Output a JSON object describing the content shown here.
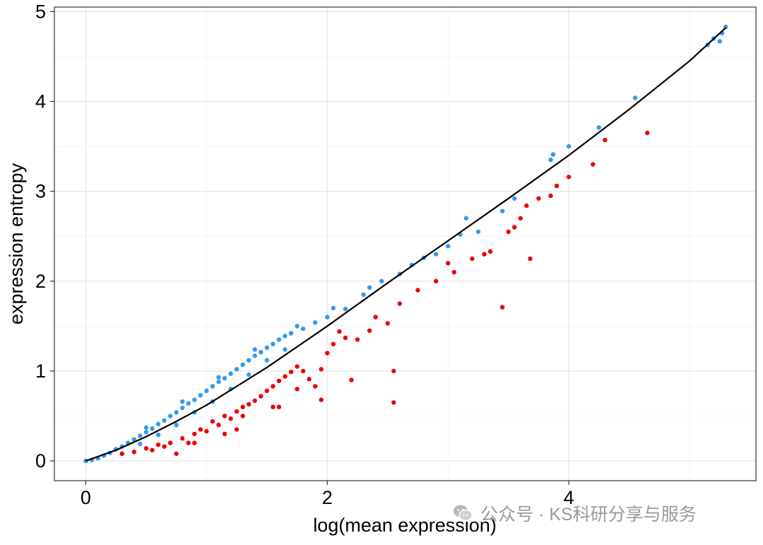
{
  "chart_data": {
    "type": "scatter",
    "title": "",
    "xlabel": "log(mean expression)",
    "ylabel": "expression entropy",
    "xlim": [
      -0.26,
      5.55
    ],
    "ylim": [
      -0.22,
      5.05
    ],
    "x_ticks": [
      0,
      2,
      4
    ],
    "y_ticks": [
      0,
      1,
      2,
      3,
      4,
      5
    ],
    "grid": true,
    "legend": "none",
    "colors": {
      "series_a": "#3399ee",
      "series_b": "#ee0000",
      "fit": "#000000"
    },
    "fit_line": {
      "x": [
        0,
        0.25,
        0.5,
        0.75,
        1.0,
        1.25,
        1.5,
        1.75,
        2.0,
        2.5,
        3.0,
        3.5,
        4.0,
        4.5,
        5.0,
        5.3
      ],
      "y": [
        0,
        0.12,
        0.27,
        0.44,
        0.62,
        0.83,
        1.04,
        1.27,
        1.5,
        1.98,
        2.45,
        2.92,
        3.4,
        3.91,
        4.45,
        4.82
      ]
    },
    "series": [
      {
        "color": "#3399ee",
        "points": [
          [
            0,
            0
          ],
          [
            0.05,
            0.01
          ],
          [
            0.1,
            0.03
          ],
          [
            0.15,
            0.06
          ],
          [
            0.2,
            0.09
          ],
          [
            0.25,
            0.13
          ],
          [
            0.3,
            0.16
          ],
          [
            0.35,
            0.2
          ],
          [
            0.4,
            0.24
          ],
          [
            0.45,
            0.28
          ],
          [
            0.5,
            0.32
          ],
          [
            0.55,
            0.36
          ],
          [
            0.6,
            0.41
          ],
          [
            0.65,
            0.45
          ],
          [
            0.7,
            0.5
          ],
          [
            0.75,
            0.54
          ],
          [
            0.8,
            0.59
          ],
          [
            0.85,
            0.64
          ],
          [
            0.9,
            0.68
          ],
          [
            0.95,
            0.73
          ],
          [
            1.0,
            0.78
          ],
          [
            1.05,
            0.83
          ],
          [
            1.1,
            0.88
          ],
          [
            1.15,
            0.92
          ],
          [
            1.2,
            0.97
          ],
          [
            1.25,
            1.02
          ],
          [
            1.3,
            1.07
          ],
          [
            1.35,
            1.12
          ],
          [
            1.4,
            1.17
          ],
          [
            1.45,
            1.21
          ],
          [
            1.5,
            1.26
          ],
          [
            1.55,
            1.3
          ],
          [
            1.6,
            1.35
          ],
          [
            1.65,
            1.39
          ],
          [
            1.7,
            1.42
          ],
          [
            1.8,
            1.47
          ],
          [
            1.9,
            1.54
          ],
          [
            2.0,
            1.6
          ],
          [
            2.15,
            1.69
          ],
          [
            2.3,
            1.85
          ],
          [
            2.45,
            2.0
          ],
          [
            2.6,
            2.08
          ],
          [
            2.8,
            2.26
          ],
          [
            3.0,
            2.39
          ],
          [
            3.1,
            2.52
          ],
          [
            3.15,
            2.7
          ],
          [
            3.45,
            2.78
          ],
          [
            3.55,
            2.92
          ],
          [
            3.85,
            3.35
          ],
          [
            3.87,
            3.41
          ],
          [
            4.0,
            3.5
          ],
          [
            4.25,
            3.71
          ],
          [
            4.55,
            4.04
          ],
          [
            5.15,
            4.63
          ],
          [
            5.2,
            4.7
          ],
          [
            5.25,
            4.67
          ],
          [
            5.27,
            4.76
          ],
          [
            5.3,
            4.83
          ],
          [
            0.3,
            0.08
          ],
          [
            0.45,
            0.19
          ],
          [
            0.6,
            0.29
          ],
          [
            0.75,
            0.4
          ],
          [
            0.9,
            0.54
          ],
          [
            1.05,
            0.66
          ],
          [
            1.2,
            0.8
          ],
          [
            1.35,
            0.96
          ],
          [
            1.5,
            1.12
          ],
          [
            1.65,
            1.24
          ],
          [
            0.5,
            0.37
          ],
          [
            0.8,
            0.66
          ],
          [
            1.1,
            0.93
          ],
          [
            1.4,
            1.24
          ],
          [
            1.75,
            1.5
          ],
          [
            2.05,
            1.7
          ],
          [
            2.35,
            1.93
          ],
          [
            2.7,
            2.18
          ],
          [
            2.9,
            2.3
          ],
          [
            3.25,
            2.55
          ]
        ]
      },
      {
        "color": "#ee0000",
        "points": [
          [
            0.3,
            0.08
          ],
          [
            0.4,
            0.1
          ],
          [
            0.5,
            0.14
          ],
          [
            0.6,
            0.18
          ],
          [
            0.7,
            0.2
          ],
          [
            0.75,
            0.08
          ],
          [
            0.8,
            0.25
          ],
          [
            0.85,
            0.2
          ],
          [
            0.9,
            0.3
          ],
          [
            0.95,
            0.35
          ],
          [
            1.0,
            0.33
          ],
          [
            1.05,
            0.44
          ],
          [
            1.1,
            0.4
          ],
          [
            1.15,
            0.5
          ],
          [
            1.2,
            0.47
          ],
          [
            1.25,
            0.55
          ],
          [
            1.3,
            0.6
          ],
          [
            1.35,
            0.63
          ],
          [
            1.4,
            0.67
          ],
          [
            1.45,
            0.72
          ],
          [
            1.5,
            0.78
          ],
          [
            1.55,
            0.83
          ],
          [
            1.6,
            0.89
          ],
          [
            1.65,
            0.94
          ],
          [
            1.7,
            0.99
          ],
          [
            1.75,
            1.05
          ],
          [
            1.8,
            1.0
          ],
          [
            1.85,
            0.91
          ],
          [
            1.9,
            0.83
          ],
          [
            1.95,
            1.02
          ],
          [
            2.0,
            1.2
          ],
          [
            2.05,
            1.3
          ],
          [
            2.1,
            1.44
          ],
          [
            2.15,
            1.37
          ],
          [
            2.25,
            1.35
          ],
          [
            2.35,
            1.45
          ],
          [
            2.4,
            1.6
          ],
          [
            2.5,
            1.53
          ],
          [
            2.55,
            0.65
          ],
          [
            2.6,
            1.75
          ],
          [
            2.75,
            1.9
          ],
          [
            2.9,
            2.0
          ],
          [
            3.05,
            2.1
          ],
          [
            3.2,
            2.25
          ],
          [
            3.3,
            2.3
          ],
          [
            3.45,
            1.71
          ],
          [
            3.5,
            2.55
          ],
          [
            3.6,
            2.7
          ],
          [
            3.65,
            2.84
          ],
          [
            3.68,
            2.25
          ],
          [
            3.75,
            2.92
          ],
          [
            3.9,
            3.06
          ],
          [
            4.0,
            3.16
          ],
          [
            4.2,
            3.3
          ],
          [
            4.3,
            3.57
          ],
          [
            4.65,
            3.65
          ],
          [
            1.3,
            0.5
          ],
          [
            1.55,
            0.6
          ],
          [
            1.95,
            0.68
          ],
          [
            2.2,
            0.9
          ],
          [
            1.6,
            0.6
          ],
          [
            1.75,
            0.8
          ],
          [
            2.55,
            1.0
          ],
          [
            3.0,
            2.2
          ],
          [
            3.35,
            2.33
          ],
          [
            3.55,
            2.6
          ],
          [
            3.85,
            2.95
          ],
          [
            0.55,
            0.12
          ],
          [
            0.65,
            0.16
          ],
          [
            0.9,
            0.2
          ],
          [
            1.15,
            0.3
          ],
          [
            1.25,
            0.35
          ]
        ]
      }
    ]
  },
  "watermark": {
    "icon": "wechat-icon",
    "text": "公众号 · KS科研分享与服务"
  }
}
